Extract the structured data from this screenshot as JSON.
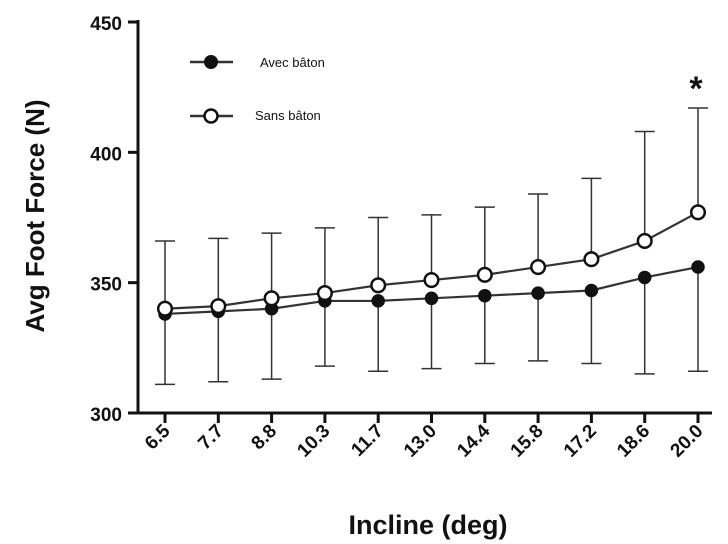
{
  "chart_data": {
    "type": "line",
    "title": "",
    "xlabel": "Incline (deg)",
    "ylabel": "Avg Foot Force (N)",
    "ylim": [
      300,
      450
    ],
    "yticks": [
      300,
      350,
      400,
      450
    ],
    "categories": [
      "6.5",
      "7.7",
      "8.8",
      "10.3",
      "11.7",
      "13.0",
      "14.4",
      "15.8",
      "17.2",
      "18.6",
      "20.0"
    ],
    "series": [
      {
        "name": "Avec bâton",
        "marker": "filled",
        "values": [
          338,
          339,
          340,
          343,
          343,
          344,
          345,
          346,
          347,
          352,
          356
        ],
        "error_low": [
          311,
          312,
          313,
          318,
          316,
          317,
          319,
          320,
          319,
          315,
          316
        ],
        "error_high": [
          338,
          339,
          340,
          343,
          343,
          344,
          345,
          346,
          347,
          352,
          356
        ]
      },
      {
        "name": "Sans bâton",
        "marker": "open",
        "values": [
          340,
          341,
          344,
          346,
          349,
          351,
          353,
          356,
          359,
          366,
          377
        ],
        "error_low": [
          340,
          341,
          344,
          346,
          349,
          351,
          353,
          356,
          359,
          366,
          377
        ],
        "error_high": [
          366,
          367,
          369,
          371,
          375,
          376,
          379,
          384,
          390,
          408,
          417
        ]
      }
    ],
    "legend": [
      "Avec bâton",
      "Sans bâton"
    ],
    "annotations": [
      {
        "text": "*",
        "category": "20.0"
      }
    ],
    "colors": {
      "line": "#333333",
      "marker_fill": "#111111",
      "open_fill": "#ffffff"
    }
  }
}
